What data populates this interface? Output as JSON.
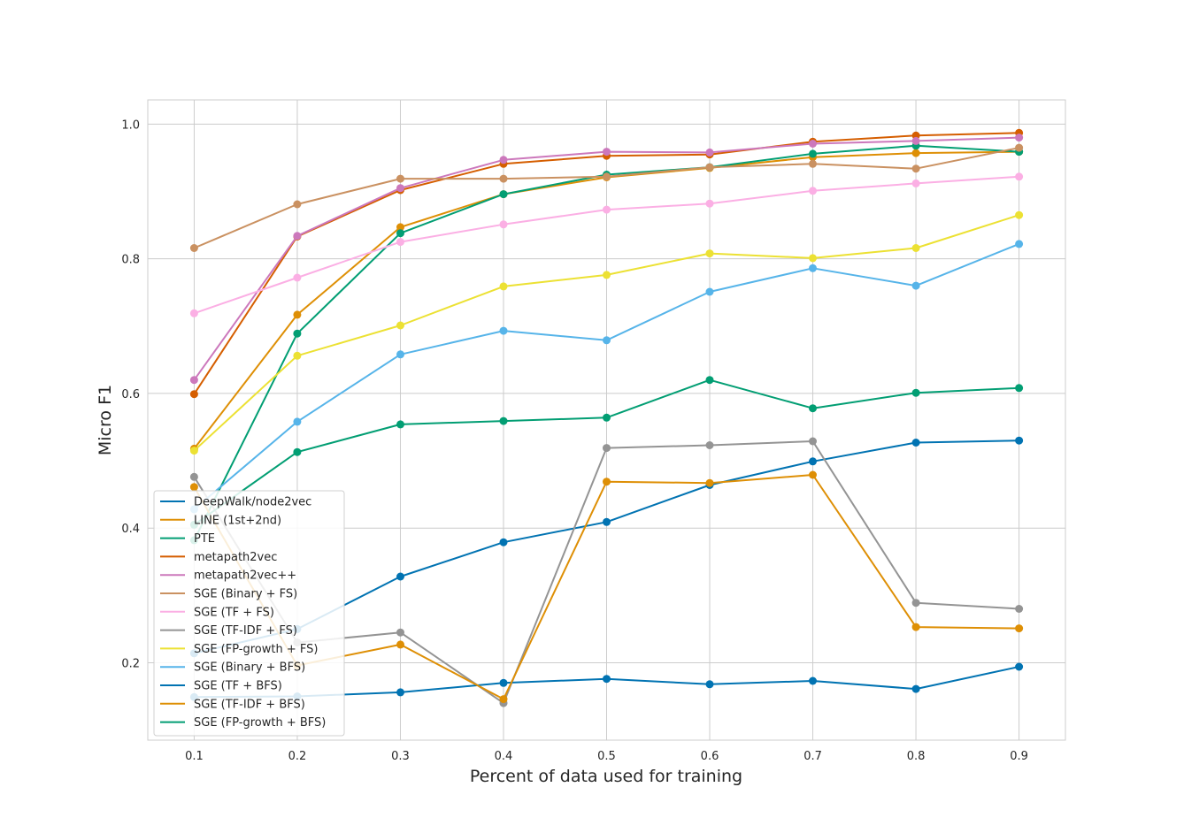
{
  "chart_data": {
    "type": "line",
    "title": "",
    "xlabel": "Percent of data used for training",
    "ylabel": "Micro F1",
    "xlim": [
      0.055,
      0.945
    ],
    "ylim": [
      0.085,
      1.036
    ],
    "x": [
      0.1,
      0.2,
      0.3,
      0.4,
      0.5,
      0.6,
      0.7,
      0.8,
      0.9
    ],
    "xticks": [
      "0.1",
      "0.2",
      "0.3",
      "0.4",
      "0.5",
      "0.6",
      "0.7",
      "0.8",
      "0.9"
    ],
    "yticks": [
      "0.2",
      "0.4",
      "0.6",
      "0.8",
      "1.0"
    ],
    "ytick_values": [
      0.2,
      0.4,
      0.6,
      0.8,
      1.0
    ],
    "grid": true,
    "legend_position": "lower-left",
    "series": [
      {
        "name": "DeepWalk/node2vec",
        "color": "#0173b2",
        "values": [
          0.214,
          0.25,
          0.328,
          0.379,
          0.409,
          0.464,
          0.499,
          0.527,
          0.53
        ]
      },
      {
        "name": "LINE (1st+2nd)",
        "color": "#de8f05",
        "values": [
          0.518,
          0.717,
          0.847,
          0.896,
          0.921,
          0.935,
          0.951,
          0.957,
          0.959
        ]
      },
      {
        "name": "PTE",
        "color": "#029e73",
        "values": [
          0.382,
          0.689,
          0.838,
          0.896,
          0.925,
          0.936,
          0.956,
          0.968,
          0.959
        ]
      },
      {
        "name": "metapath2vec",
        "color": "#d55e00",
        "values": [
          0.599,
          0.833,
          0.902,
          0.941,
          0.953,
          0.955,
          0.974,
          0.983,
          0.987
        ]
      },
      {
        "name": "metapath2vec++",
        "color": "#cc78bc",
        "values": [
          0.62,
          0.834,
          0.905,
          0.947,
          0.959,
          0.958,
          0.971,
          0.975,
          0.98
        ]
      },
      {
        "name": "SGE (Binary + FS)",
        "color": "#ca9161",
        "values": [
          0.816,
          0.881,
          0.919,
          0.919,
          0.922,
          0.936,
          0.941,
          0.934,
          0.965
        ]
      },
      {
        "name": "SGE (TF + FS)",
        "color": "#fbafe4",
        "values": [
          0.719,
          0.772,
          0.825,
          0.851,
          0.873,
          0.882,
          0.901,
          0.912,
          0.922
        ]
      },
      {
        "name": "SGE (TF-IDF + FS)",
        "color": "#949494",
        "values": [
          0.476,
          0.23,
          0.245,
          0.14,
          0.519,
          0.523,
          0.529,
          0.289,
          0.28
        ]
      },
      {
        "name": "SGE (FP-growth + FS)",
        "color": "#ece133",
        "values": [
          0.515,
          0.656,
          0.701,
          0.759,
          0.776,
          0.808,
          0.801,
          0.816,
          0.865
        ]
      },
      {
        "name": "SGE (Binary + BFS)",
        "color": "#56b4e9",
        "values": [
          0.428,
          0.558,
          0.658,
          0.693,
          0.679,
          0.751,
          0.786,
          0.76,
          0.822
        ]
      },
      {
        "name": "SGE (TF + BFS)",
        "color": "#0173b2",
        "values": [
          0.149,
          0.15,
          0.156,
          0.17,
          0.176,
          0.168,
          0.173,
          0.161,
          0.194
        ]
      },
      {
        "name": "SGE (TF-IDF + BFS)",
        "color": "#de8f05",
        "values": [
          0.461,
          0.196,
          0.227,
          0.146,
          0.469,
          0.467,
          0.479,
          0.253,
          0.251
        ]
      },
      {
        "name": "SGE (FP-growth + BFS)",
        "color": "#029e73",
        "values": [
          0.405,
          0.513,
          0.554,
          0.559,
          0.564,
          0.62,
          0.578,
          0.601,
          0.608
        ]
      }
    ]
  }
}
